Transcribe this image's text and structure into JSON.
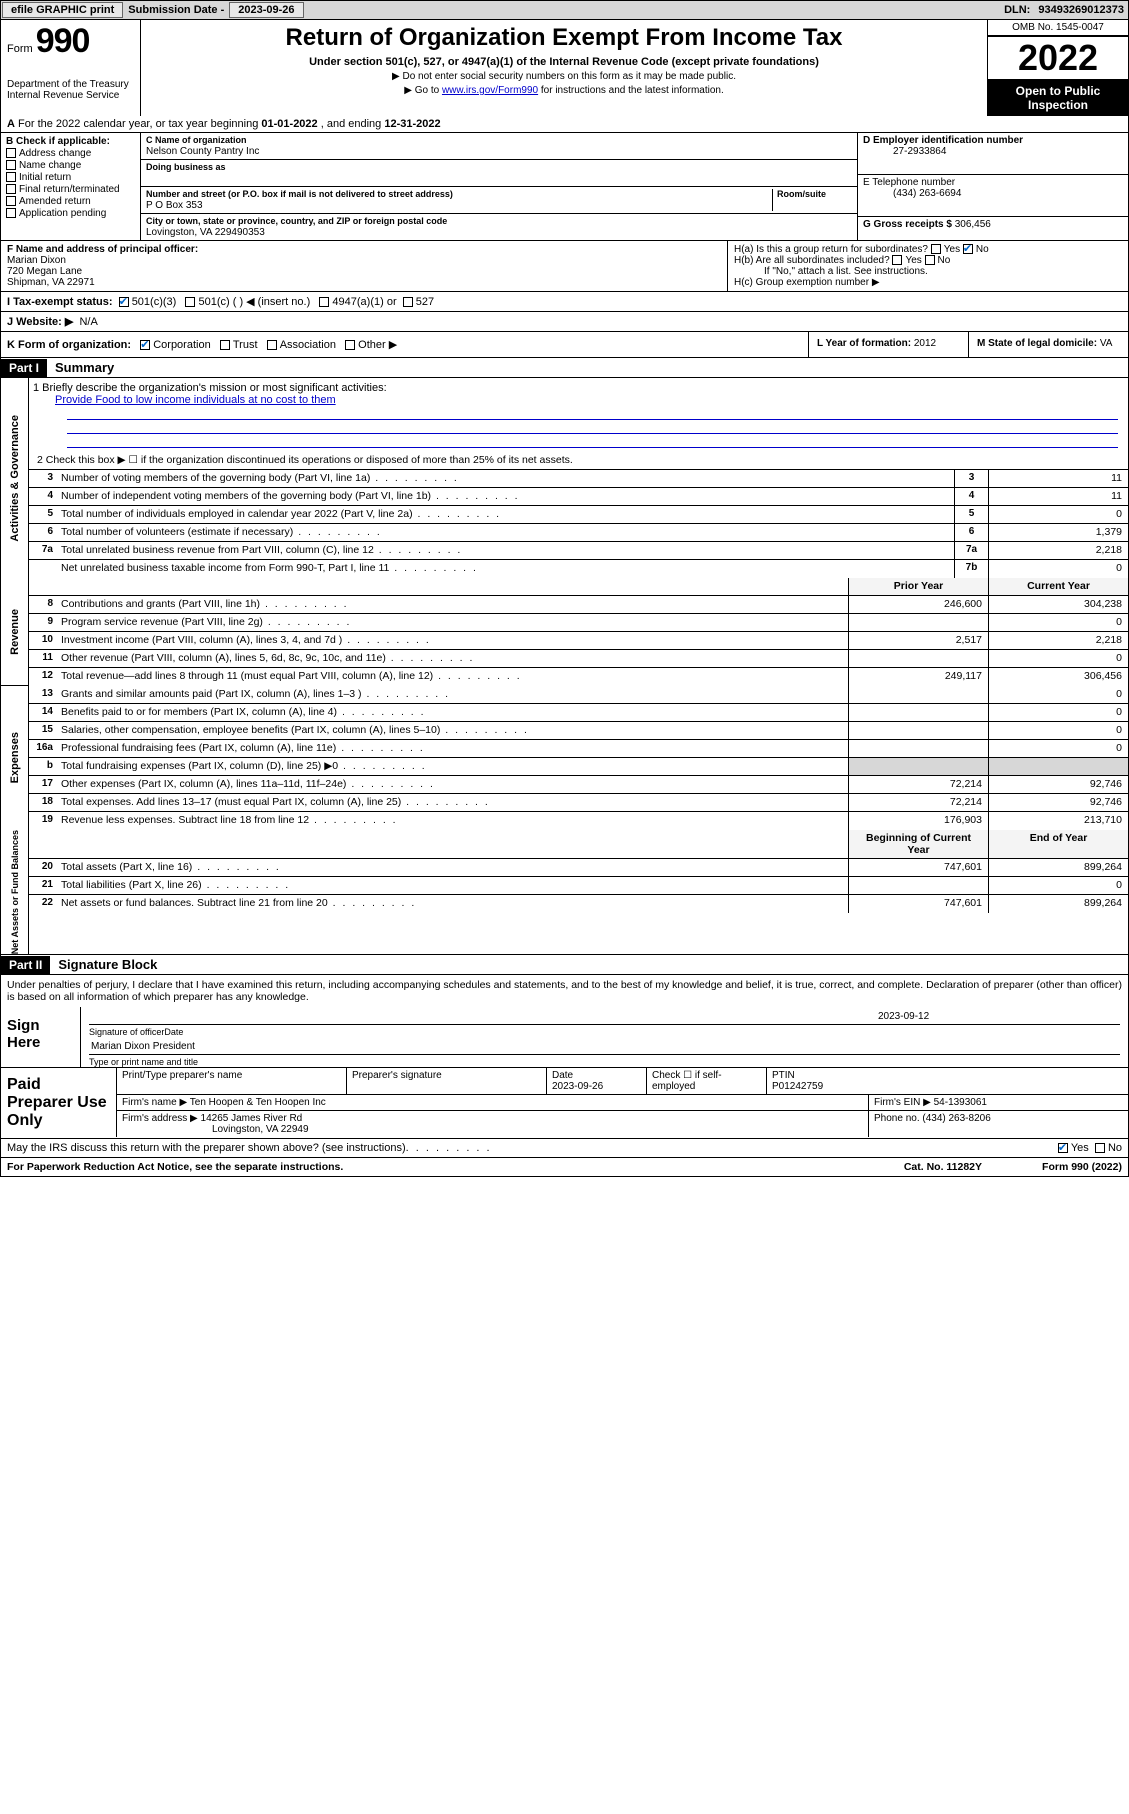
{
  "topbar": {
    "efile": "efile GRAPHIC print",
    "submission_label": "Submission Date - ",
    "submission_date": "2023-09-26",
    "dln_label": "DLN: ",
    "dln": "93493269012373"
  },
  "header": {
    "form_label": "Form",
    "form_number": "990",
    "dept": "Department of the Treasury\nInternal Revenue Service",
    "title": "Return of Organization Exempt From Income Tax",
    "subtitle": "Under section 501(c), 527, or 4947(a)(1) of the Internal Revenue Code (except private foundations)",
    "note1": "▶ Do not enter social security numbers on this form as it may be made public.",
    "note2_pre": "▶ Go to ",
    "note2_link": "www.irs.gov/Form990",
    "note2_post": " for instructions and the latest information.",
    "omb": "OMB No. 1545-0047",
    "year": "2022",
    "inspection": "Open to Public Inspection"
  },
  "section_a": {
    "text_pre": "For the 2022 calendar year, or tax year beginning ",
    "begin": "01-01-2022",
    "mid": " , and ending ",
    "end": "12-31-2022"
  },
  "block_b": {
    "header": "B Check if applicable:",
    "items": [
      "Address change",
      "Name change",
      "Initial return",
      "Final return/terminated",
      "Amended return",
      "Application pending"
    ]
  },
  "block_c": {
    "name_label": "C Name of organization",
    "name": "Nelson County Pantry Inc",
    "dba_label": "Doing business as",
    "dba": "",
    "addr_label": "Number and street (or P.O. box if mail is not delivered to street address)",
    "room_label": "Room/suite",
    "addr": "P O Box 353",
    "city_label": "City or town, state or province, country, and ZIP or foreign postal code",
    "city": "Lovingston, VA  229490353"
  },
  "block_d": {
    "label": "D Employer identification number",
    "value": "27-2933864"
  },
  "block_e": {
    "label": "E Telephone number",
    "value": "(434) 263-6694"
  },
  "block_g": {
    "label": "G Gross receipts $ ",
    "value": "306,456"
  },
  "block_f": {
    "label": "F Name and address of principal officer:",
    "name": "Marian Dixon",
    "addr1": "720 Megan Lane",
    "addr2": "Shipman, VA  22971"
  },
  "block_h": {
    "a_label": "H(a)  Is this a group return for subordinates?",
    "a_yes": "Yes",
    "a_no": "No",
    "b_label": "H(b)  Are all subordinates included?",
    "b_yes": "Yes",
    "b_no": "No",
    "note": "If \"No,\" attach a list. See instructions.",
    "c_label": "H(c)  Group exemption number ▶"
  },
  "row_i": {
    "label": "I   Tax-exempt status:",
    "opt1": "501(c)(3)",
    "opt2": "501(c) (   ) ◀ (insert no.)",
    "opt3": "4947(a)(1) or",
    "opt4": "527"
  },
  "row_j": {
    "label": "J   Website: ▶",
    "value": "N/A"
  },
  "row_k": {
    "label": "K Form of organization:",
    "opts": [
      "Corporation",
      "Trust",
      "Association",
      "Other ▶"
    ],
    "l_label": "L Year of formation: ",
    "l_value": "2012",
    "m_label": "M State of legal domicile: ",
    "m_value": "VA"
  },
  "part1": {
    "header": "Part I",
    "title": "Summary",
    "line1_label": "1   Briefly describe the organization's mission or most significant activities:",
    "mission": "Provide Food to low income individuals at no cost to them",
    "line2": "2   Check this box ▶ ☐  if the organization discontinued its operations or disposed of more than 25% of its net assets.",
    "governance": [
      {
        "n": "3",
        "t": "Number of voting members of the governing body (Part VI, line 1a)",
        "b": "3",
        "v": "11"
      },
      {
        "n": "4",
        "t": "Number of independent voting members of the governing body (Part VI, line 1b)",
        "b": "4",
        "v": "11"
      },
      {
        "n": "5",
        "t": "Total number of individuals employed in calendar year 2022 (Part V, line 2a)",
        "b": "5",
        "v": "0"
      },
      {
        "n": "6",
        "t": "Total number of volunteers (estimate if necessary)",
        "b": "6",
        "v": "1,379"
      },
      {
        "n": "7a",
        "t": "Total unrelated business revenue from Part VIII, column (C), line 12",
        "b": "7a",
        "v": "2,218"
      },
      {
        "n": "",
        "t": "Net unrelated business taxable income from Form 990-T, Part I, line 11",
        "b": "7b",
        "v": "0"
      }
    ],
    "col_headers": {
      "prior": "Prior Year",
      "current": "Current Year"
    },
    "revenue": [
      {
        "n": "8",
        "t": "Contributions and grants (Part VIII, line 1h)",
        "p": "246,600",
        "c": "304,238"
      },
      {
        "n": "9",
        "t": "Program service revenue (Part VIII, line 2g)",
        "p": "",
        "c": "0"
      },
      {
        "n": "10",
        "t": "Investment income (Part VIII, column (A), lines 3, 4, and 7d )",
        "p": "2,517",
        "c": "2,218"
      },
      {
        "n": "11",
        "t": "Other revenue (Part VIII, column (A), lines 5, 6d, 8c, 9c, 10c, and 11e)",
        "p": "",
        "c": "0"
      },
      {
        "n": "12",
        "t": "Total revenue—add lines 8 through 11 (must equal Part VIII, column (A), line 12)",
        "p": "249,117",
        "c": "306,456"
      }
    ],
    "expenses": [
      {
        "n": "13",
        "t": "Grants and similar amounts paid (Part IX, column (A), lines 1–3 )",
        "p": "",
        "c": "0"
      },
      {
        "n": "14",
        "t": "Benefits paid to or for members (Part IX, column (A), line 4)",
        "p": "",
        "c": "0"
      },
      {
        "n": "15",
        "t": "Salaries, other compensation, employee benefits (Part IX, column (A), lines 5–10)",
        "p": "",
        "c": "0"
      },
      {
        "n": "16a",
        "t": "Professional fundraising fees (Part IX, column (A), line 11e)",
        "p": "",
        "c": "0"
      },
      {
        "n": "b",
        "t": "Total fundraising expenses (Part IX, column (D), line 25) ▶0",
        "p": "grey",
        "c": "grey"
      },
      {
        "n": "17",
        "t": "Other expenses (Part IX, column (A), lines 11a–11d, 11f–24e)",
        "p": "72,214",
        "c": "92,746"
      },
      {
        "n": "18",
        "t": "Total expenses. Add lines 13–17 (must equal Part IX, column (A), line 25)",
        "p": "72,214",
        "c": "92,746"
      },
      {
        "n": "19",
        "t": "Revenue less expenses. Subtract line 18 from line 12",
        "p": "176,903",
        "c": "213,710"
      }
    ],
    "na_headers": {
      "begin": "Beginning of Current Year",
      "end": "End of Year"
    },
    "netassets": [
      {
        "n": "20",
        "t": "Total assets (Part X, line 16)",
        "p": "747,601",
        "c": "899,264"
      },
      {
        "n": "21",
        "t": "Total liabilities (Part X, line 26)",
        "p": "",
        "c": "0"
      },
      {
        "n": "22",
        "t": "Net assets or fund balances. Subtract line 21 from line 20",
        "p": "747,601",
        "c": "899,264"
      }
    ],
    "side_labels": {
      "gov": "Activities & Governance",
      "rev": "Revenue",
      "exp": "Expenses",
      "na": "Net Assets or Fund Balances"
    }
  },
  "part2": {
    "header": "Part II",
    "title": "Signature Block",
    "declaration": "Under penalties of perjury, I declare that I have examined this return, including accompanying schedules and statements, and to the best of my knowledge and belief, it is true, correct, and complete. Declaration of preparer (other than officer) is based on all information of which preparer has any knowledge.",
    "sign_here": "Sign Here",
    "sig_officer": "Signature of officer",
    "sig_date": "2023-09-12",
    "date_label": "Date",
    "officer_name": "Marian Dixon  President",
    "officer_label": "Type or print name and title",
    "paid": "Paid Preparer Use Only",
    "prep_name_label": "Print/Type preparer's name",
    "prep_sig_label": "Preparer's signature",
    "prep_date_label": "Date",
    "prep_date": "2023-09-26",
    "check_label": "Check ☐ if self-employed",
    "ptin_label": "PTIN",
    "ptin": "P01242759",
    "firm_name_label": "Firm's name    ▶",
    "firm_name": "Ten Hoopen & Ten Hoopen Inc",
    "firm_ein_label": "Firm's EIN ▶",
    "firm_ein": "54-1393061",
    "firm_addr_label": "Firm's address ▶",
    "firm_addr1": "14265 James River Rd",
    "firm_addr2": "Lovingston, VA  22949",
    "phone_label": "Phone no. ",
    "phone": "(434) 263-8206",
    "discuss": "May the IRS discuss this return with the preparer shown above? (see instructions)",
    "yes": "Yes",
    "no": "No"
  },
  "footer": {
    "pra": "For Paperwork Reduction Act Notice, see the separate instructions.",
    "cat": "Cat. No. 11282Y",
    "form": "Form 990 (2022)"
  }
}
